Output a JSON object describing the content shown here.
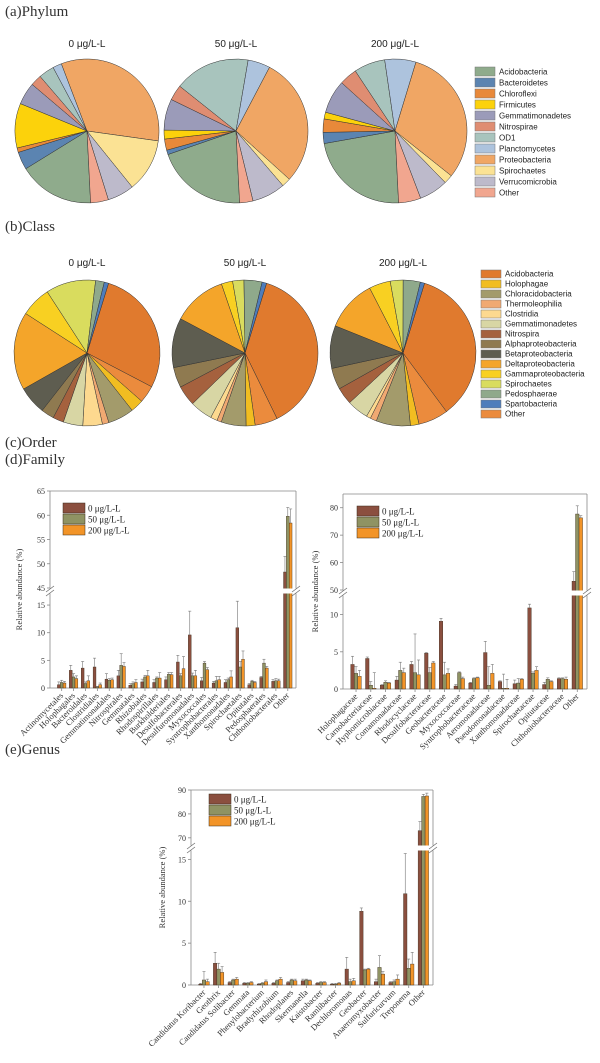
{
  "sections": {
    "a": "(a)Phylum",
    "b": "(b)Class",
    "c": "(c)Order",
    "d": "(d)Family",
    "e": "(e)Genus"
  },
  "chart_data": [
    {
      "id": "phylum",
      "type": "pie",
      "title": "(a)Phylum",
      "legend_position": "right",
      "categories": [
        "Acidobacteria",
        "Bacteroidetes",
        "Chloroflexi",
        "Firmicutes",
        "Gemmatimonadetes",
        "Nitrospirae",
        "OD1",
        "Planctomycetes",
        "Proteobacteria",
        "Spirochaetes",
        "Verrucomicrobia",
        "Other"
      ],
      "colors": [
        "#8fab8c",
        "#5b84b1",
        "#e8893a",
        "#fcd20b",
        "#9b9bb9",
        "#df8d72",
        "#a8c4bd",
        "#adc3dd",
        "#f0a664",
        "#fbe294",
        "#bdbacb",
        "#f1a68f"
      ],
      "pies": [
        {
          "label": "0 μg/L-L",
          "values": [
            17.0,
            4.0,
            1.0,
            10.0,
            5.0,
            2.5,
            3.5,
            2.0,
            33.0,
            12.0,
            6.0,
            4.0
          ]
        },
        {
          "label": "50 μg/L-L",
          "values": [
            20.5,
            1.0,
            2.5,
            2.0,
            7.0,
            3.5,
            17.0,
            5.0,
            29.0,
            2.0,
            7.5,
            3.0
          ]
        },
        {
          "label": "200 μg/L-L",
          "values": [
            23.0,
            2.5,
            3.0,
            1.5,
            7.5,
            4.0,
            7.0,
            7.0,
            31.0,
            2.0,
            6.5,
            5.0
          ]
        }
      ]
    },
    {
      "id": "class",
      "type": "pie",
      "title": "(b)Class",
      "legend_position": "right",
      "categories": [
        "Acidobacteria",
        "Holophagae",
        "Chloracidobacteria",
        "Thermoleophilia",
        "Clostridia",
        "Gemmatimonadetes",
        "Nitrospira",
        "Alphaproteobacteria",
        "Betaproteobacteria",
        "Deltaproteobacteria",
        "Gammaproteobacteria",
        "Spirochaetes",
        "Pedosphaerae",
        "Spartobacteria",
        "Other"
      ],
      "colors": [
        "#e07a2e",
        "#f1bd21",
        "#a39b6b",
        "#f0a972",
        "#fdd98f",
        "#d8d6a4",
        "#a5613e",
        "#8f7a50",
        "#5e5d50",
        "#f4a52a",
        "#f8d022",
        "#d9dc5e",
        "#8fa98b",
        "#4f7dbb",
        "#eb8b3d"
      ],
      "pies": [
        {
          "label": "0 μg/L-L",
          "values": [
            29.0,
            3.0,
            6.0,
            1.5,
            4.5,
            4.5,
            2.5,
            3.0,
            6.5,
            18.0,
            7.0,
            11.5,
            2.0,
            1.0,
            4.0
          ]
        },
        {
          "label": "50 μg/L-L",
          "values": [
            38.0,
            2.0,
            5.5,
            1.0,
            1.5,
            5.0,
            4.5,
            4.5,
            11.0,
            12.0,
            2.5,
            2.5,
            4.0,
            1.0,
            5.0
          ]
        },
        {
          "label": "200 μg/L-L",
          "values": [
            37.0,
            2.0,
            8.0,
            1.5,
            1.0,
            5.0,
            4.0,
            5.0,
            10.0,
            12.0,
            5.0,
            3.0,
            4.0,
            1.0,
            7.0
          ]
        }
      ]
    },
    {
      "id": "family-left",
      "type": "bar",
      "title": "(d)Family",
      "ylabel": "Relative abundance (%)",
      "axis_break": {
        "lower": [
          0,
          17
        ],
        "upper": [
          45,
          65
        ]
      },
      "yticks_lower": [
        0,
        5,
        10,
        15
      ],
      "yticks_upper": [
        45,
        50,
        55,
        60,
        65
      ],
      "legend_position": "top-left",
      "series_names": [
        "0     μg/L-L",
        "50   μg/L-L",
        "200 μg/L-L"
      ],
      "series_colors": [
        "#8b4f3f",
        "#8f9363",
        "#f29428"
      ],
      "categories": [
        "Actinomycetales",
        "Holophagales",
        "Bacteroidales",
        "Clostridiales",
        "Gemmatimonadales",
        "Nitrospirales",
        "Gemmatales",
        "Rhizobiales",
        "Rhodospirillales",
        "Burkholderiales",
        "Desulfobacterales",
        "Desulfuromonadales",
        "Myxococcales",
        "Syntrophobacterales",
        "Xanthomonadales",
        "Spirochaetales",
        "Opitutales",
        "Pedosphaerales",
        "Chthoniobacterales",
        "Other"
      ],
      "series": [
        {
          "name": "0 μg/L-L",
          "values": [
            0.6,
            3.2,
            3.6,
            3.8,
            1.6,
            2.2,
            0.5,
            1.1,
            1.0,
            1.5,
            4.7,
            9.6,
            1.3,
            0.9,
            1.0,
            10.9,
            0.6,
            1.9,
            1.2,
            48.3
          ],
          "errors": [
            0.5,
            0.9,
            1.2,
            1.6,
            1.0,
            1.0,
            0.3,
            0.5,
            0.5,
            0.5,
            1.2,
            4.3,
            0.6,
            0.3,
            0.5,
            4.8,
            0.2,
            0.2,
            0.3,
            3.2
          ]
        },
        {
          "name": "50 μg/L-L",
          "values": [
            1.0,
            2.0,
            0.8,
            0.2,
            1.4,
            4.1,
            0.8,
            2.0,
            1.8,
            2.5,
            2.2,
            2.2,
            4.5,
            1.3,
            1.5,
            3.8,
            1.2,
            4.5,
            1.3,
            59.8
          ],
          "errors": [
            0.4,
            0.6,
            0.3,
            0.1,
            0.3,
            2.1,
            0.3,
            0.3,
            0.2,
            0.3,
            0.4,
            0.5,
            0.3,
            0.8,
            0.3,
            1.0,
            0.2,
            0.7,
            0.4,
            1.8
          ]
        },
        {
          "name": "200 μg/L-L",
          "values": [
            0.9,
            1.7,
            1.3,
            0.6,
            1.5,
            3.9,
            1.0,
            2.2,
            1.8,
            2.4,
            3.5,
            2.2,
            3.3,
            1.5,
            2.0,
            5.2,
            1.0,
            3.6,
            1.3,
            58.4
          ],
          "errors": [
            0.3,
            0.5,
            0.9,
            0.3,
            0.3,
            0.7,
            0.5,
            1.0,
            1.0,
            0.4,
            2.2,
            1.0,
            0.4,
            0.6,
            1.1,
            1.5,
            0.2,
            0.3,
            0.3,
            2.9
          ]
        }
      ]
    },
    {
      "id": "family-right",
      "type": "bar",
      "ylabel": "Relative abundance (%)",
      "axis_break": {
        "lower": [
          0,
          12.5
        ],
        "upper": [
          50,
          85
        ]
      },
      "yticks_lower": [
        0,
        5,
        10
      ],
      "yticks_upper": [
        50,
        60,
        70,
        80
      ],
      "legend_position": "top-left",
      "series_names": [
        "0     μg/L-L",
        "50   μg/L-L",
        "200 μg/L-L"
      ],
      "series_colors": [
        "#8b4f3f",
        "#8f9363",
        "#f29428"
      ],
      "categories": [
        "Holophagaceae",
        "Carnobacteriaceae",
        "Hyphomicrobiaceae",
        "Comamonadaceae",
        "Rhodocyclaceae",
        "Desulfobacteraceae",
        "Geobacteraceae",
        "Myxococcaceae",
        "Syntrophobacteraceae",
        "Aeromonadaceae",
        "Pseudomonadaceae",
        "Xanthomonadaceae",
        "Spirochaetaceae",
        "Opitutaceae",
        "Chthoniobacteraceae",
        "Other"
      ],
      "series": [
        {
          "name": "0 μg/L-L",
          "values": [
            3.3,
            4.1,
            0.5,
            1.2,
            3.3,
            4.8,
            9.1,
            0.4,
            0.8,
            4.9,
            1.0,
            0.7,
            10.9,
            0.6,
            1.4,
            53.2
          ],
          "errors": [
            1.1,
            0.2,
            0.1,
            0.5,
            0.4,
            0.1,
            0.4,
            0.2,
            0.1,
            1.5,
            0.1,
            0.5,
            0.5,
            0.3,
            0.1,
            3.5
          ]
        },
        {
          "name": "50 μg/L-L",
          "values": [
            2.1,
            0.5,
            0.9,
            2.5,
            2.2,
            2.2,
            1.9,
            2.2,
            1.4,
            0.5,
            0.1,
            0.8,
            2.1,
            1.3,
            1.4,
            77.7
          ],
          "errors": [
            0.9,
            0.5,
            0.2,
            1.1,
            5.2,
            0.7,
            1.7,
            0.1,
            0.1,
            2.5,
            1.9,
            0.6,
            0.2,
            0.2,
            0.1,
            3.0
          ]
        },
        {
          "name": "200 μg/L-L",
          "values": [
            1.7,
            0.1,
            0.8,
            2.2,
            1.9,
            3.5,
            2.1,
            1.4,
            1.5,
            2.1,
            0.1,
            1.3,
            2.5,
            1.0,
            1.3,
            76.3
          ],
          "errors": [
            0.8,
            2.1,
            0.1,
            0.6,
            2.0,
            0.2,
            0.6,
            0.2,
            0.1,
            1.2,
            1.2,
            0.1,
            0.5,
            0.1,
            0.3,
            0.8
          ]
        }
      ]
    },
    {
      "id": "genus",
      "type": "bar",
      "title": "(e)Genus",
      "ylabel": "Relative abundance (%)",
      "axis_break": {
        "lower": [
          0,
          16
        ],
        "upper": [
          67,
          90
        ]
      },
      "yticks_lower": [
        0,
        5,
        10,
        15
      ],
      "yticks_upper": [
        70,
        80,
        90
      ],
      "legend_position": "top-left",
      "series_names": [
        "0     μg/L-L",
        "50   μg/L-L",
        "200 μg/L-L"
      ],
      "series_colors": [
        "#8b4f3f",
        "#8f9363",
        "#f29428"
      ],
      "categories": [
        "Candidatus Koribacter",
        "Geothrix",
        "Candidatus Solibacter",
        "Gemmata",
        "Phenylobacterium",
        "Bradyrhizobium",
        "Rhodoplanes",
        "Skermanella",
        "Kaistobacter",
        "Ramlibacter",
        "Dechloromonas",
        "Geobacter",
        "Anaeromyxobacter",
        "Sulfuricurvum",
        "Treponema",
        "Other"
      ],
      "series": [
        {
          "name": "0 μg/L-L",
          "values": [
            0.1,
            2.6,
            0.3,
            0.2,
            0.1,
            0.2,
            0.3,
            0.5,
            0.2,
            0.1,
            1.9,
            8.8,
            0.4,
            0.3,
            10.9,
            73.0
          ],
          "errors": [
            0.1,
            1.3,
            0.1,
            0.1,
            0.1,
            0.1,
            0.1,
            0.2,
            0.1,
            0.1,
            1.4,
            0.4,
            0.3,
            0.1,
            4.8,
            3.8
          ]
        },
        {
          "name": "50 μg/L-L",
          "values": [
            0.6,
            1.9,
            0.6,
            0.2,
            0.2,
            0.5,
            0.6,
            0.6,
            0.3,
            0.1,
            0.4,
            1.8,
            2.1,
            0.4,
            2.0,
            87.3
          ],
          "errors": [
            1.0,
            0.7,
            0.1,
            0.1,
            0.1,
            0.1,
            0.1,
            0.1,
            0.1,
            0.1,
            0.3,
            0.1,
            1.4,
            0.2,
            1.1,
            0.9
          ]
        },
        {
          "name": "200 μg/L-L",
          "values": [
            0.4,
            1.5,
            0.7,
            0.3,
            0.4,
            0.7,
            0.5,
            0.5,
            0.3,
            0.2,
            0.5,
            1.9,
            1.3,
            0.7,
            2.5,
            87.5
          ],
          "errors": [
            0.3,
            0.7,
            0.2,
            0.1,
            0.2,
            0.2,
            0.2,
            0.1,
            0.1,
            0.1,
            0.3,
            0.1,
            0.3,
            0.5,
            1.4,
            1.2
          ]
        }
      ]
    }
  ]
}
